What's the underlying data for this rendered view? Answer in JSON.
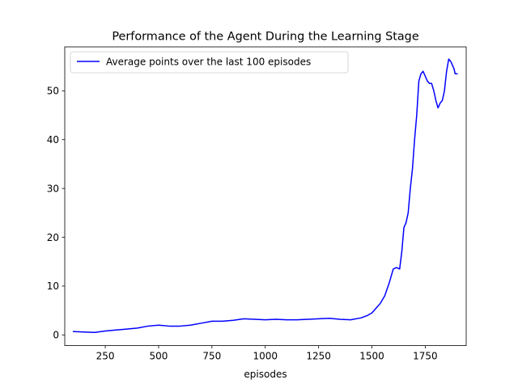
{
  "chart_data": {
    "type": "line",
    "title": "Performance of the Agent During the Learning Stage",
    "xlabel": "episodes",
    "ylabel": "",
    "xlim": [
      60,
      1942
    ],
    "ylim": [
      -2.2,
      59.0
    ],
    "xticks": [
      250,
      500,
      750,
      1000,
      1250,
      1500,
      1750
    ],
    "xtick_labels": [
      "250",
      "500",
      "750",
      "1000",
      "1250",
      "1500",
      "1750"
    ],
    "yticks": [
      0,
      10,
      20,
      30,
      40,
      50
    ],
    "ytick_labels": [
      "0",
      "10",
      "20",
      "30",
      "40",
      "50"
    ],
    "grid": false,
    "legend_position": "top-left",
    "series": [
      {
        "name": "Average points over the last 100 episodes",
        "color": "#0000ff",
        "x": [
          100,
          150,
          200,
          250,
          300,
          350,
          400,
          450,
          500,
          550,
          600,
          650,
          700,
          750,
          800,
          850,
          900,
          950,
          1000,
          1050,
          1100,
          1150,
          1200,
          1250,
          1300,
          1350,
          1400,
          1450,
          1480,
          1500,
          1520,
          1540,
          1560,
          1580,
          1600,
          1615,
          1630,
          1640,
          1650,
          1660,
          1670,
          1680,
          1690,
          1700,
          1710,
          1720,
          1730,
          1740,
          1750,
          1760,
          1770,
          1780,
          1790,
          1800,
          1810,
          1820,
          1830,
          1840,
          1850,
          1860,
          1870,
          1875,
          1880,
          1885,
          1890,
          1900
        ],
        "y": [
          0.7,
          0.6,
          0.5,
          0.8,
          1.0,
          1.2,
          1.4,
          1.8,
          2.0,
          1.8,
          1.8,
          2.0,
          2.4,
          2.8,
          2.8,
          3.0,
          3.3,
          3.2,
          3.1,
          3.2,
          3.1,
          3.1,
          3.2,
          3.3,
          3.4,
          3.2,
          3.1,
          3.5,
          4.0,
          4.5,
          5.5,
          6.5,
          8.0,
          10.5,
          13.5,
          13.8,
          13.5,
          17.0,
          22.0,
          23.0,
          25.0,
          30.0,
          34.0,
          40.0,
          45.0,
          52.0,
          53.5,
          54.0,
          53.0,
          52.0,
          51.5,
          51.5,
          50.0,
          48.0,
          46.5,
          47.5,
          48.0,
          50.0,
          54.0,
          56.5,
          56.0,
          55.5,
          55.0,
          54.5,
          53.5,
          53.5
        ]
      }
    ]
  }
}
